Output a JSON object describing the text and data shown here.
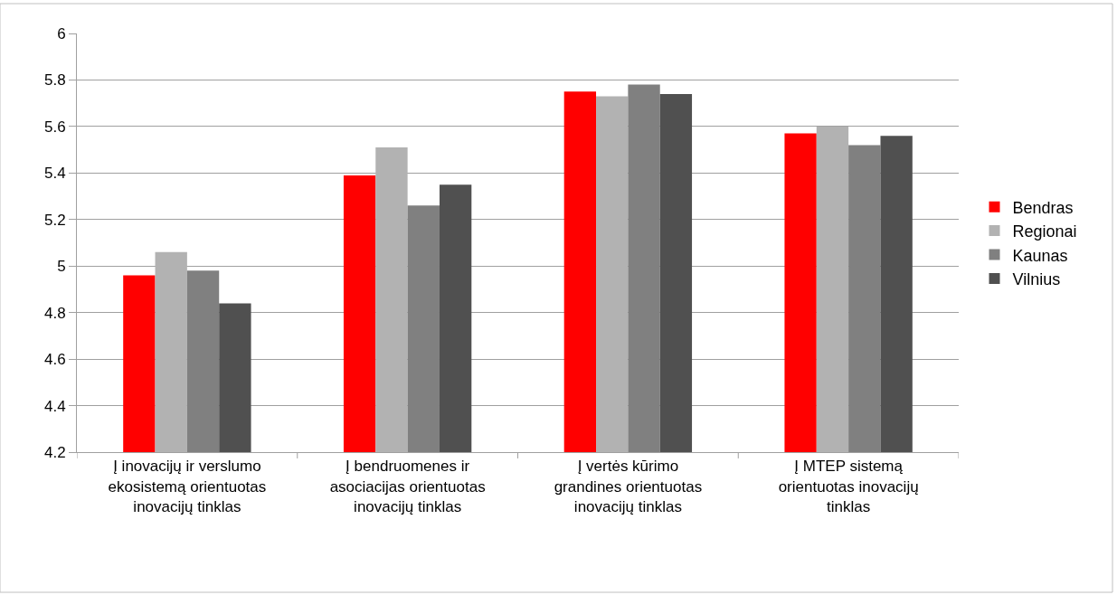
{
  "chart_data": {
    "type": "bar",
    "categories": [
      "Į inovacijų ir verslumo ekosistemą orientuotas inovacijų tinklas",
      "Į bendruomenes ir asociacijas orientuotas inovacijų tinklas",
      "Į vertės kūrimo grandines orientuotas inovacijų tinklas",
      "Į MTEP sistemą orientuotas inovacijų tinklas"
    ],
    "series": [
      {
        "name": "Bendras",
        "color": "#ff0000",
        "values": [
          4.96,
          5.39,
          5.75,
          5.57
        ]
      },
      {
        "name": "Regionai",
        "color": "#b2b2b2",
        "values": [
          5.06,
          5.51,
          5.73,
          5.6
        ]
      },
      {
        "name": "Kaunas",
        "color": "#808080",
        "values": [
          4.98,
          5.26,
          5.78,
          5.52
        ]
      },
      {
        "name": "Vilnius",
        "color": "#505050",
        "values": [
          4.84,
          5.35,
          5.74,
          5.56
        ]
      }
    ],
    "ylim": [
      4.2,
      6
    ],
    "yticks": [
      4.2,
      4.4,
      4.6,
      4.8,
      5,
      5.2,
      5.4,
      5.6,
      5.8,
      6
    ],
    "grid": "y",
    "legend": "right"
  }
}
